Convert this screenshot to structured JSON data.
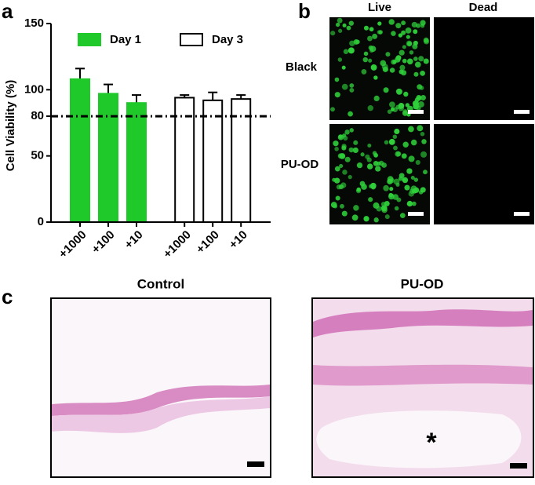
{
  "chart_data": {
    "type": "bar",
    "panel_label": "a",
    "ylabel": "Cell Viability (%)",
    "categories": [
      "+1000",
      "+100",
      "+10",
      "+1000",
      "+100",
      "+10"
    ],
    "series": [
      {
        "name": "Day 1",
        "color": "#1fc92a",
        "values": [
          108,
          97,
          90,
          null,
          null,
          null
        ],
        "errors": [
          8,
          7,
          6,
          null,
          null,
          null
        ]
      },
      {
        "name": "Day 3",
        "color": "#ffffff",
        "values": [
          null,
          null,
          null,
          94,
          92,
          93
        ],
        "errors": [
          null,
          null,
          null,
          2,
          6,
          3
        ]
      }
    ],
    "ylim": [
      0,
      150
    ],
    "yticks": [
      0,
      50,
      80,
      100,
      150
    ],
    "reference_line": 80
  },
  "panel_b": {
    "label": "b",
    "columns": [
      "Live",
      "Dead"
    ],
    "rows": [
      "Black",
      "PU-OD"
    ]
  },
  "panel_c": {
    "label": "c",
    "titles": [
      "Control",
      "PU-OD"
    ],
    "annotation": "*"
  }
}
